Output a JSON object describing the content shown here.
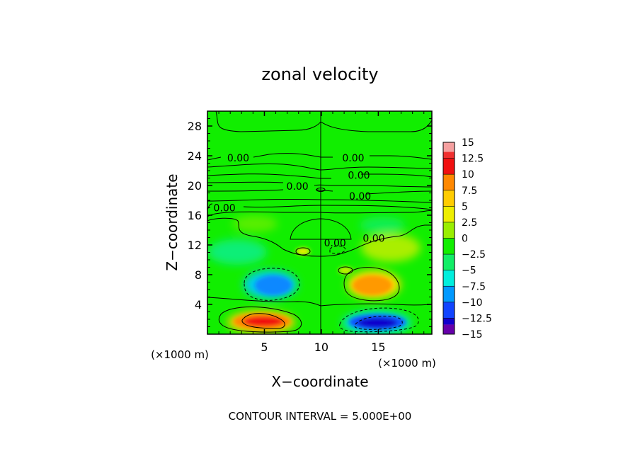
{
  "chart_data": {
    "type": "heatmap",
    "title": "zonal velocity",
    "xlabel": "X−coordinate",
    "ylabel": "Z−coordinate",
    "x_unit_label_left": "(×1000 m)",
    "x_unit_label_right": "(×1000 m)",
    "footer": "CONTOUR INTERVAL = 5.000E+00",
    "xlim": [
      0,
      19.7
    ],
    "ylim": [
      0,
      30
    ],
    "x_ticks": [
      5,
      10,
      15
    ],
    "x_tick_labels": [
      "5",
      "10",
      "15"
    ],
    "y_ticks": [
      4,
      8,
      12,
      16,
      20,
      24,
      28
    ],
    "y_tick_labels": [
      "4",
      "8",
      "12",
      "16",
      "20",
      "24",
      "28"
    ],
    "contour_interval": 5,
    "contour_labels": [
      {
        "text": "0.00",
        "x": 2.7,
        "z": 23.6
      },
      {
        "text": "0.00",
        "x": 12.8,
        "z": 23.6
      },
      {
        "text": "0.00",
        "x": 13.3,
        "z": 21.3
      },
      {
        "text": "0.00",
        "x": 7.9,
        "z": 19.8
      },
      {
        "text": "0.00",
        "x": 13.4,
        "z": 18.5
      },
      {
        "text": "0.00",
        "x": 1.5,
        "z": 16.9
      },
      {
        "text": "0.00",
        "x": 11.2,
        "z": 12.2
      },
      {
        "text": "0.00",
        "x": 14.6,
        "z": 12.8
      }
    ],
    "colorbar": {
      "levels": [
        15,
        12.5,
        10,
        7.5,
        5,
        2.5,
        0,
        -2.5,
        -5,
        -7.5,
        -10,
        -12.5,
        -15
      ],
      "labels": [
        "15",
        "12.5",
        "10",
        "7.5",
        "5",
        "2.5",
        "0",
        "−12.5",
        "−15"
      ],
      "label_values": [
        15,
        12.5,
        10,
        7.5,
        5,
        2.5,
        0,
        -12.5,
        -15
      ],
      "extra_labels": [
        "−2.5",
        "−5",
        "−7.5",
        "−10"
      ],
      "extra_label_values": [
        -2.5,
        -5,
        -7.5,
        -10
      ],
      "colors": [
        "#f5a0a0",
        "#f03030",
        "#f01010",
        "#ff8800",
        "#ffcc00",
        "#eeee00",
        "#99ee00",
        "#11ee00",
        "#11ee66",
        "#00eedd",
        "#0099ff",
        "#1144ff",
        "#1100cc",
        "#6600aa"
      ]
    },
    "features": [
      {
        "name": "positive core bottom-left",
        "x": 5.2,
        "z": 1.8,
        "value": 12
      },
      {
        "name": "negative core bottom-right",
        "x": 14.9,
        "z": 1.8,
        "value": -13
      },
      {
        "name": "negative lobe middle-left",
        "x": 5.5,
        "z": 6.6,
        "value": -7
      },
      {
        "name": "positive lobe middle-right",
        "x": 15.0,
        "z": 6.4,
        "value": 8
      }
    ]
  }
}
